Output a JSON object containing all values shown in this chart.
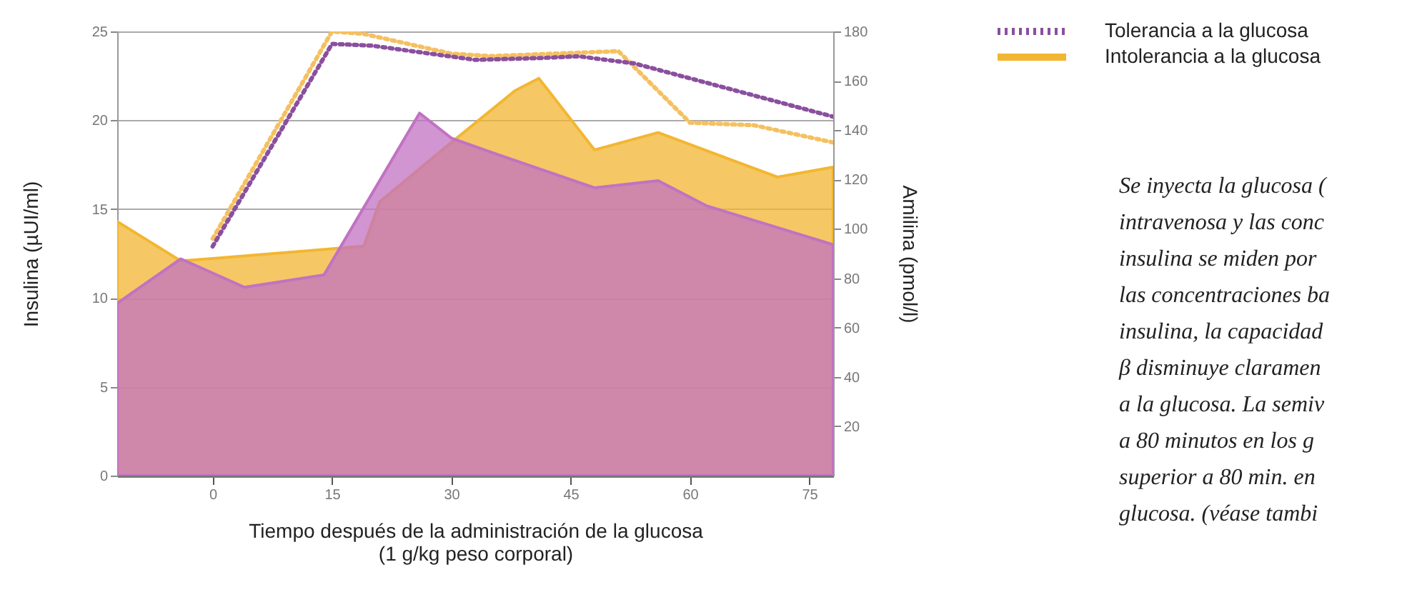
{
  "chart_data": {
    "type": "area",
    "xlabel": "Tiempo después de la administración de la glucosa\n(1 g/kg peso corporal)",
    "ylabel": "Insulina (µUI/ml)",
    "y2label": "Amilina (pmol/l)",
    "xlim": [
      -12,
      78
    ],
    "xticks": [
      0,
      15,
      30,
      45,
      60,
      75
    ],
    "ylim": [
      0,
      25
    ],
    "yticks": [
      0,
      5,
      10,
      15,
      20,
      25
    ],
    "y2lim": [
      0,
      180
    ],
    "y2ticks": [
      20,
      40,
      60,
      80,
      100,
      120,
      140,
      160,
      180
    ],
    "grid": "y",
    "legend": "top right",
    "series": [
      {
        "name": "Intolerancia a la glucosa",
        "axis": "y2",
        "color": "#f2b631",
        "x": [
          -12,
          -4,
          0,
          19,
          21,
          30,
          38,
          41,
          48,
          56,
          71,
          78
        ],
        "values": [
          103,
          87,
          88,
          93,
          111,
          135,
          156,
          161,
          132,
          139,
          121,
          125
        ]
      },
      {
        "color": "#c272c2",
        "x": [
          -12,
          -4,
          4,
          14,
          26,
          30,
          35,
          48,
          56,
          62,
          78
        ],
        "values": [
          9.7,
          12.2,
          10.6,
          11.3,
          20.4,
          19.0,
          18.2,
          16.2,
          16.6,
          15.2,
          13.0
        ]
      },
      {
        "type": "line",
        "axis": "y2",
        "color": "#f5c060",
        "line_style": "dotted",
        "x": [
          0,
          15,
          19,
          30,
          35,
          51,
          60,
          68,
          78
        ],
        "values": [
          96,
          180,
          179,
          171,
          170,
          172,
          143,
          142,
          135
        ]
      },
      {
        "name": "Tolerancia a la glucosa",
        "type": "line",
        "color": "#8a4f9e",
        "line_style": "dotted",
        "x": [
          0,
          15,
          20,
          33,
          41,
          46,
          53,
          78
        ],
        "values": [
          12.9,
          24.3,
          24.2,
          23.4,
          23.5,
          23.6,
          23.2,
          20.2
        ]
      }
    ],
    "annotations": [
      "Se inyecta la glucosa (\nintravenosa y las conc\ninsulina se miden por\nlas concentraciones ba\ninsulina, la capacidad\nβ disminuye claramen\na la glucosa. La semiv\na 80 minutos en los g\nsuperior a 80 min. en\nglucosa. (véase tambi"
    ]
  }
}
